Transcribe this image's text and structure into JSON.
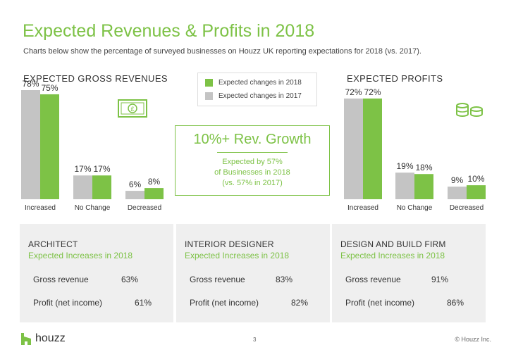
{
  "title": "Expected Revenues & Profits in 2018",
  "subtitle": "Charts below show the percentage of surveyed businesses on Houzz UK reporting expectations for 2018 (vs. 2017).",
  "legend": [
    {
      "label": "Expected changes in 2018",
      "color": "#7dc246"
    },
    {
      "label": "Expected changes in 2017",
      "color": "#c4c4c4"
    }
  ],
  "callout": {
    "headline": "10%+ Rev. Growth",
    "line1": "Expected by 57%",
    "line2": "of Businesses in 2018",
    "line3": "(vs. 57% in 2017)"
  },
  "chart_data": [
    {
      "type": "bar",
      "title": "EXPECTED GROSS REVENUES",
      "categories": [
        "Increased",
        "No Change",
        "Decreased"
      ],
      "series": [
        {
          "name": "Expected changes in 2017",
          "values": [
            78,
            17,
            6
          ],
          "labels": [
            "78%",
            "17%",
            "6%"
          ]
        },
        {
          "name": "Expected changes in 2018",
          "values": [
            75,
            17,
            8
          ],
          "labels": [
            "75%",
            "17%",
            "8%"
          ]
        }
      ],
      "ylim": [
        0,
        100
      ],
      "icon": "money-bill-icon"
    },
    {
      "type": "bar",
      "title": "EXPECTED PROFITS",
      "categories": [
        "Increased",
        "No Change",
        "Decreased"
      ],
      "series": [
        {
          "name": "Expected changes in 2017",
          "values": [
            72,
            19,
            9
          ],
          "labels": [
            "72%",
            "19%",
            "9%"
          ]
        },
        {
          "name": "Expected changes in 2018",
          "values": [
            72,
            18,
            10
          ],
          "labels": [
            "72%",
            "18%",
            "10%"
          ]
        }
      ],
      "ylim": [
        0,
        100
      ],
      "icon": "coins-icon"
    }
  ],
  "panels": [
    {
      "title": "ARCHITECT",
      "subtitle": "Expected Increases in 2018",
      "rows": [
        {
          "label": "Gross revenue",
          "value": "63%"
        },
        {
          "label": "Profit (net income)",
          "value": "61%"
        }
      ]
    },
    {
      "title": "INTERIOR DESIGNER",
      "subtitle": "Expected Increases in 2018",
      "rows": [
        {
          "label": "Gross revenue",
          "value": "83%"
        },
        {
          "label": "Profit (net income)",
          "value": "82%"
        }
      ]
    },
    {
      "title": "DESIGN AND BUILD FIRM",
      "subtitle": "Expected Increases in 2018",
      "rows": [
        {
          "label": "Gross revenue",
          "value": "91%"
        },
        {
          "label": "Profit (net income)",
          "value": "86%"
        }
      ]
    }
  ],
  "footer": {
    "brand": "houzz",
    "page": "3",
    "copyright": "© Houzz Inc."
  },
  "colors": {
    "accent": "#7dc246",
    "grey_bar": "#c4c4c4",
    "panel_bg": "#efefef"
  }
}
